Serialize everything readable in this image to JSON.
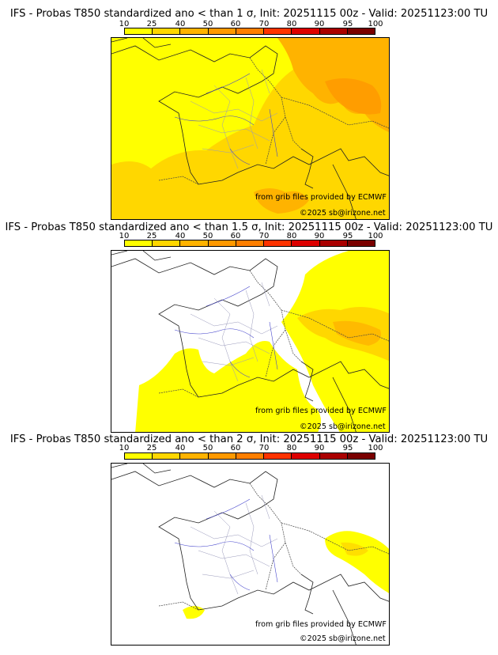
{
  "legend": {
    "ticks": [
      "10",
      "25",
      "40",
      "50",
      "60",
      "70",
      "80",
      "90",
      "95",
      "100"
    ],
    "colors": [
      "#ffff00",
      "#ffd700",
      "#ffb300",
      "#ff9900",
      "#ff7f00",
      "#ff3300",
      "#dd0000",
      "#aa0000",
      "#7a0000"
    ]
  },
  "credits": {
    "source": "from grib files provided by ECMWF",
    "copyright": "©2025 sb@irizone.net"
  },
  "panels": [
    {
      "title": "IFS - Probas T850  standardized ano < than 1 σ, Init: 20251115 00z - Valid: 20251123:00 TU"
    },
    {
      "title": "IFS - Probas T850  standardized ano < than 1.5 σ, Init: 20251115 00z - Valid: 20251123:00 TU"
    },
    {
      "title": "IFS - Probas T850  standardized ano < than 2 σ, Init: 20251115 00z - Valid: 20251123:00 TU"
    }
  ]
}
